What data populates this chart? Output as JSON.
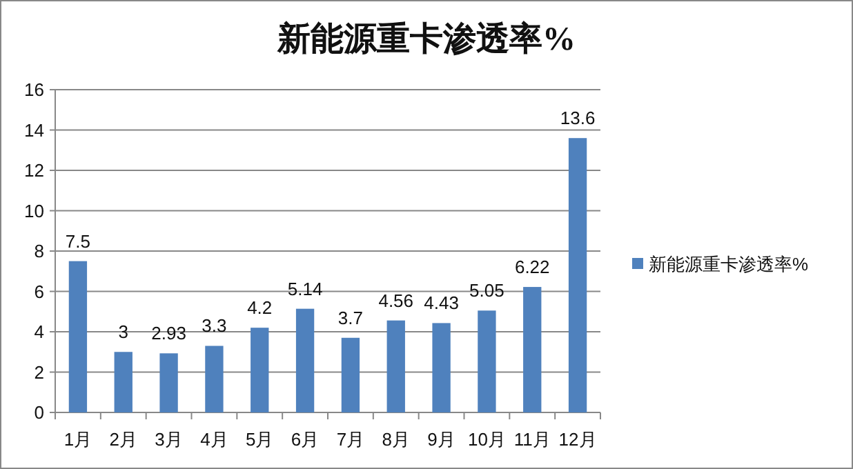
{
  "chart_data": {
    "type": "bar",
    "title": "新能源重卡渗透率%",
    "categories": [
      "1月",
      "2月",
      "3月",
      "4月",
      "5月",
      "6月",
      "7月",
      "8月",
      "9月",
      "10月",
      "11月",
      "12月"
    ],
    "series": [
      {
        "name": "新能源重卡渗透率%",
        "color": "#4f81bd",
        "values": [
          7.5,
          3,
          2.93,
          3.3,
          4.2,
          5.14,
          3.7,
          4.56,
          4.43,
          5.05,
          6.22,
          13.6
        ]
      }
    ],
    "ylim": [
      0,
      16
    ],
    "yticks": [
      0,
      2,
      4,
      6,
      8,
      10,
      12,
      14,
      16
    ],
    "grid": "y",
    "legend": "right",
    "data_labels": true
  }
}
